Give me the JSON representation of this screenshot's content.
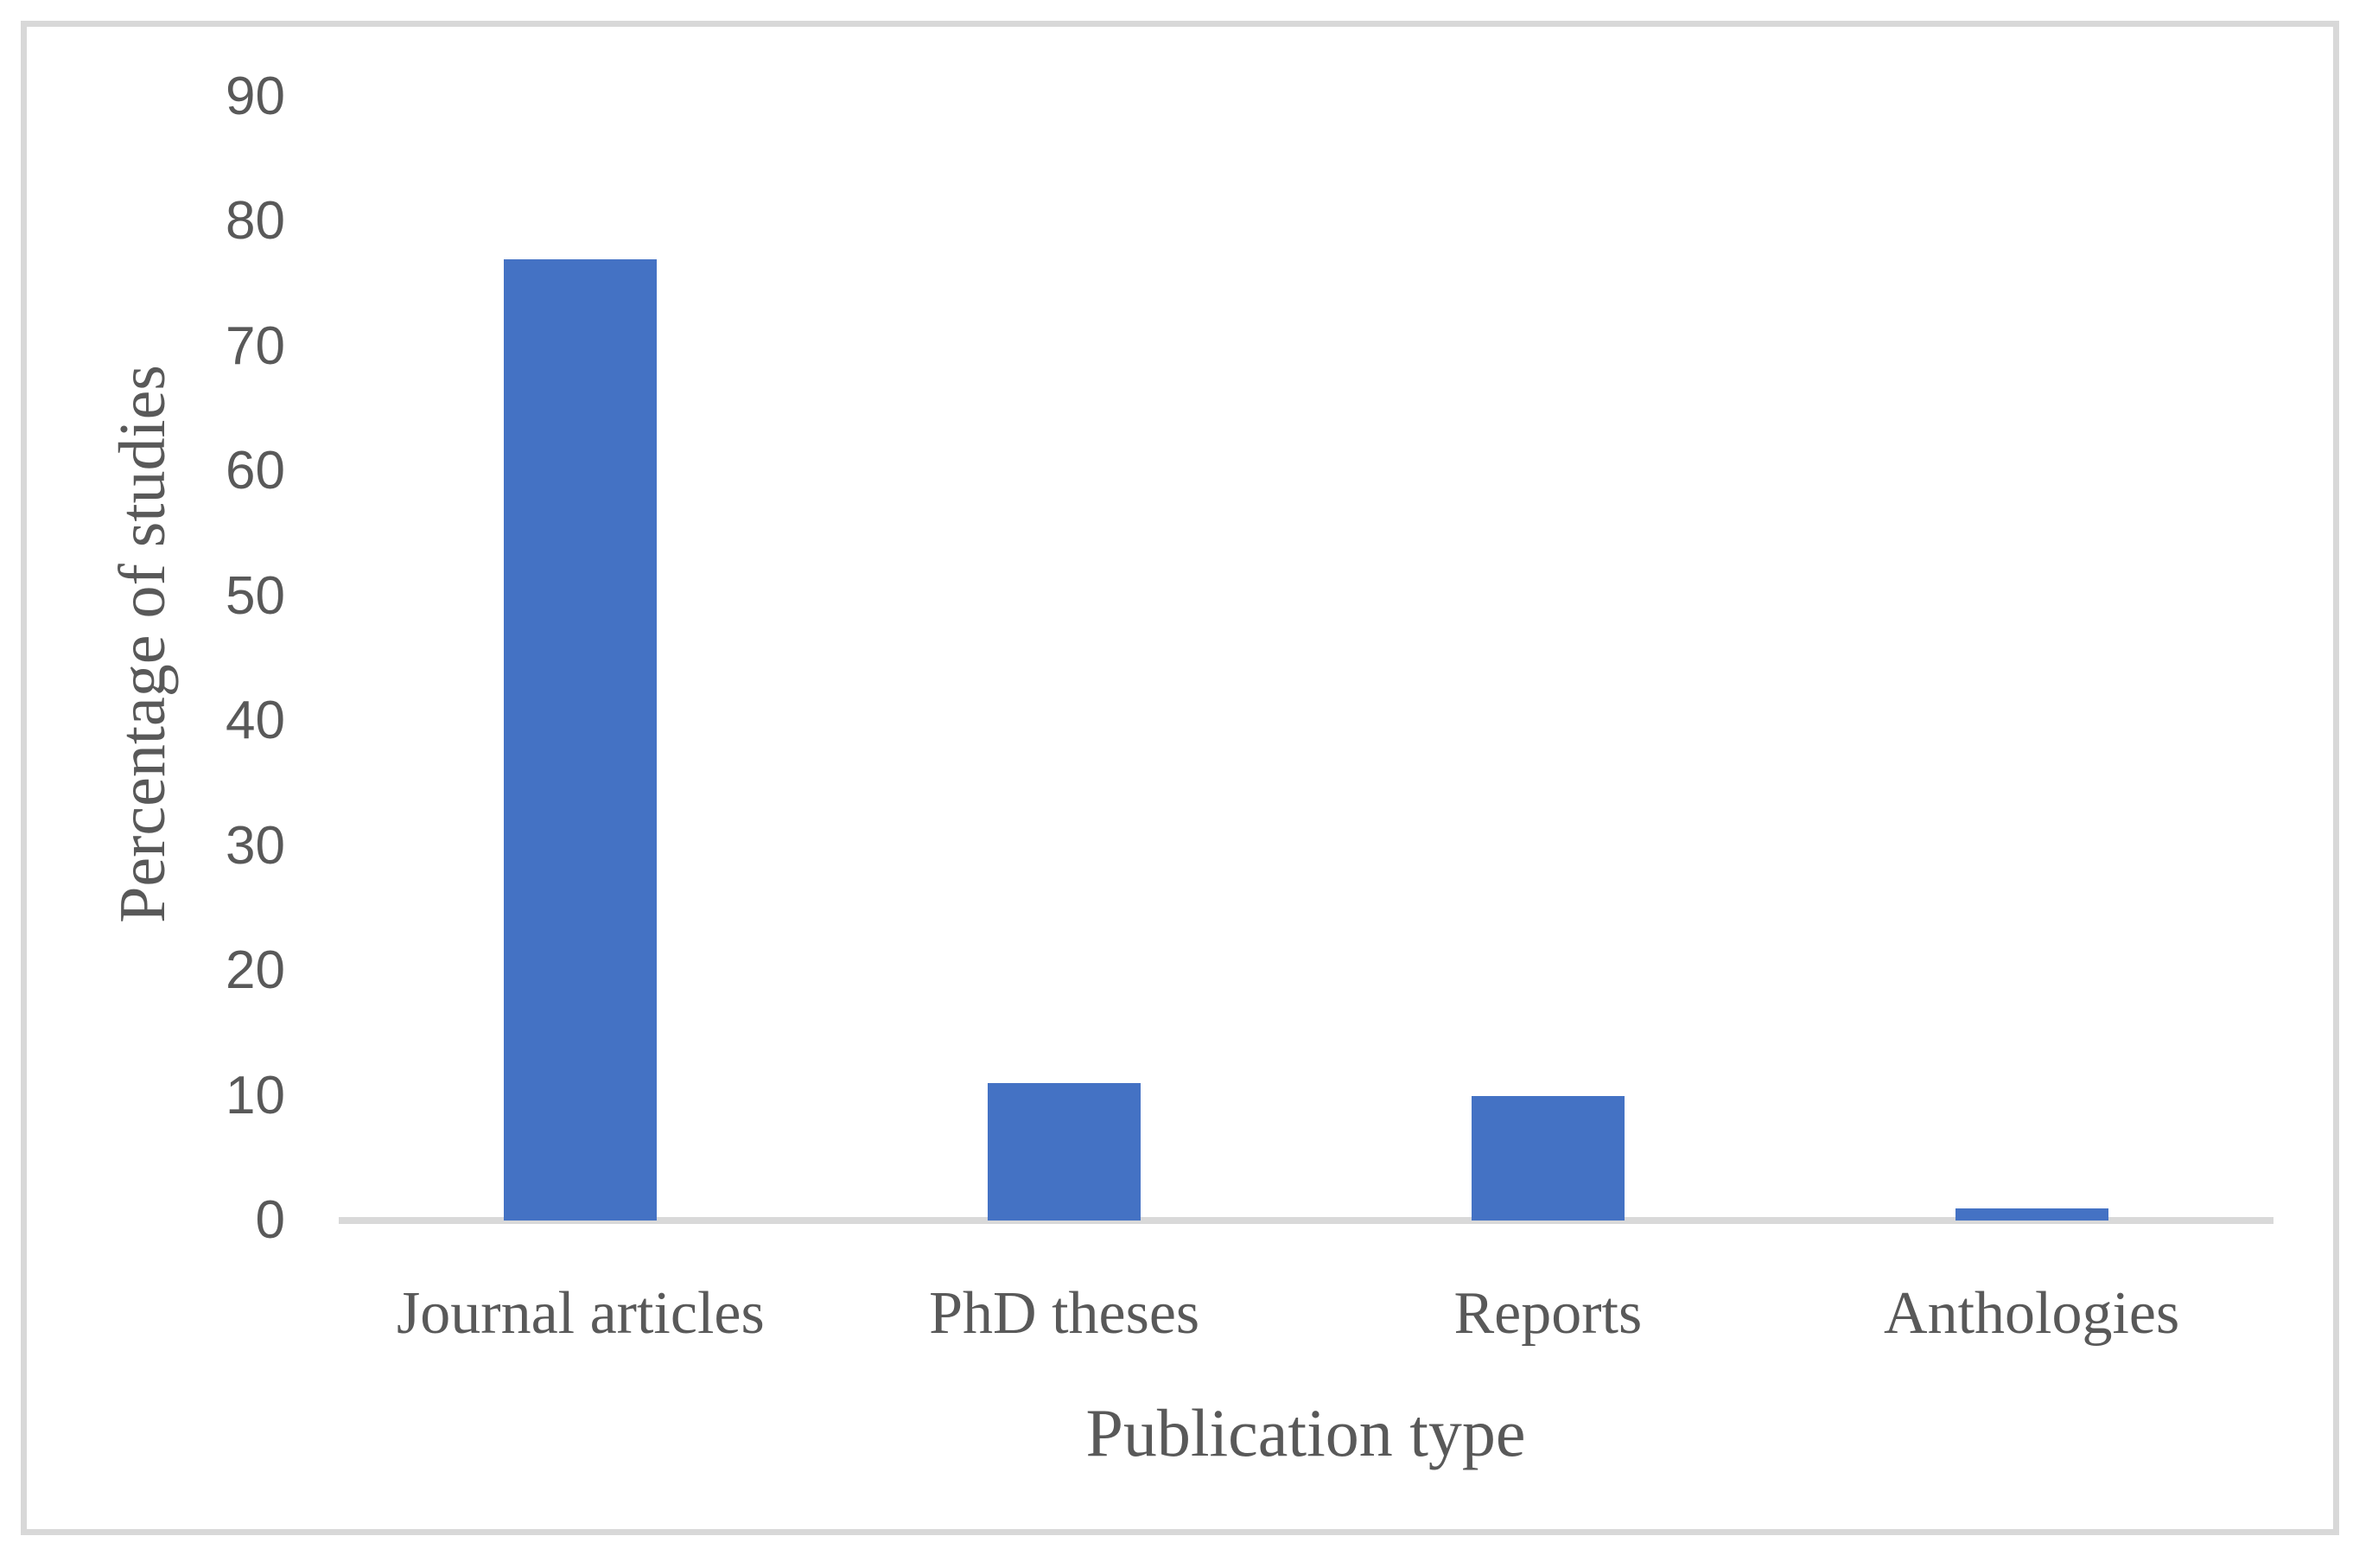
{
  "chart_data": {
    "type": "bar",
    "title": "",
    "categories": [
      "Journal articles",
      "PhD theses",
      "Reports",
      "Anthologies"
    ],
    "values": [
      77,
      11,
      10,
      1
    ],
    "xlabel": "Publication type",
    "ylabel": "Percentage of studies",
    "ylim": [
      0,
      90
    ],
    "ytick_labels": [
      "0",
      "10",
      "20",
      "30",
      "40",
      "50",
      "60",
      "70",
      "80",
      "90"
    ],
    "grid": "off",
    "legend": "none",
    "bar_color": "#4472C4",
    "axis_line_color": "#D9D9D9",
    "frame_border_color": "#D8D8D8",
    "text_color": "#595959"
  }
}
